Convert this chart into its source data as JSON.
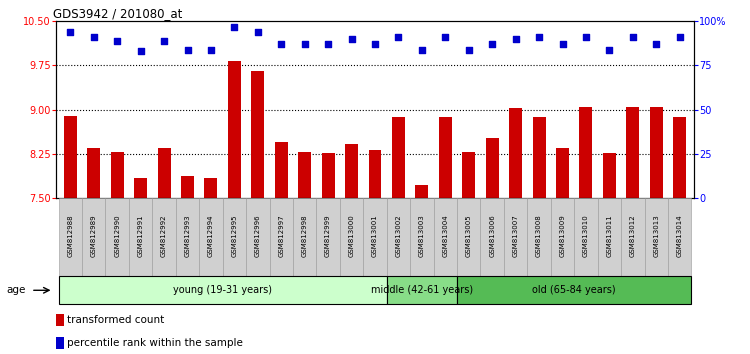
{
  "title": "GDS3942 / 201080_at",
  "samples": [
    "GSM812988",
    "GSM812989",
    "GSM812990",
    "GSM812991",
    "GSM812992",
    "GSM812993",
    "GSM812994",
    "GSM812995",
    "GSM812996",
    "GSM812997",
    "GSM812998",
    "GSM812999",
    "GSM813000",
    "GSM813001",
    "GSM813002",
    "GSM813003",
    "GSM813004",
    "GSM813005",
    "GSM813006",
    "GSM813007",
    "GSM813008",
    "GSM813009",
    "GSM813010",
    "GSM813011",
    "GSM813012",
    "GSM813013",
    "GSM813014"
  ],
  "bar_values": [
    8.9,
    8.35,
    8.28,
    7.85,
    8.35,
    7.87,
    7.84,
    9.82,
    9.65,
    8.45,
    8.28,
    8.27,
    8.42,
    8.32,
    8.87,
    7.72,
    8.87,
    8.28,
    8.52,
    9.03,
    8.88,
    8.35,
    9.05,
    8.27,
    9.04,
    9.04,
    8.88
  ],
  "percentile_values": [
    94,
    91,
    89,
    83,
    89,
    84,
    84,
    97,
    94,
    87,
    87,
    87,
    90,
    87,
    91,
    84,
    91,
    84,
    87,
    90,
    91,
    87,
    91,
    84,
    91,
    87,
    91
  ],
  "bar_color": "#CC0000",
  "dot_color": "#0000CC",
  "ylim_left": [
    7.5,
    10.5
  ],
  "ylim_right": [
    0,
    100
  ],
  "yticks_left": [
    7.5,
    8.25,
    9.0,
    9.75,
    10.5
  ],
  "yticks_right": [
    0,
    25,
    50,
    75,
    100
  ],
  "grid_values": [
    8.25,
    9.0,
    9.75
  ],
  "age_groups": [
    {
      "label": "young (19-31 years)",
      "start": 0,
      "end": 14,
      "color": "#CCFFCC"
    },
    {
      "label": "middle (42-61 years)",
      "start": 14,
      "end": 17,
      "color": "#88DD88"
    },
    {
      "label": "old (65-84 years)",
      "start": 17,
      "end": 27,
      "color": "#55BB55"
    }
  ],
  "legend_bar_label": "transformed count",
  "legend_dot_label": "percentile rank within the sample",
  "age_label": "age"
}
